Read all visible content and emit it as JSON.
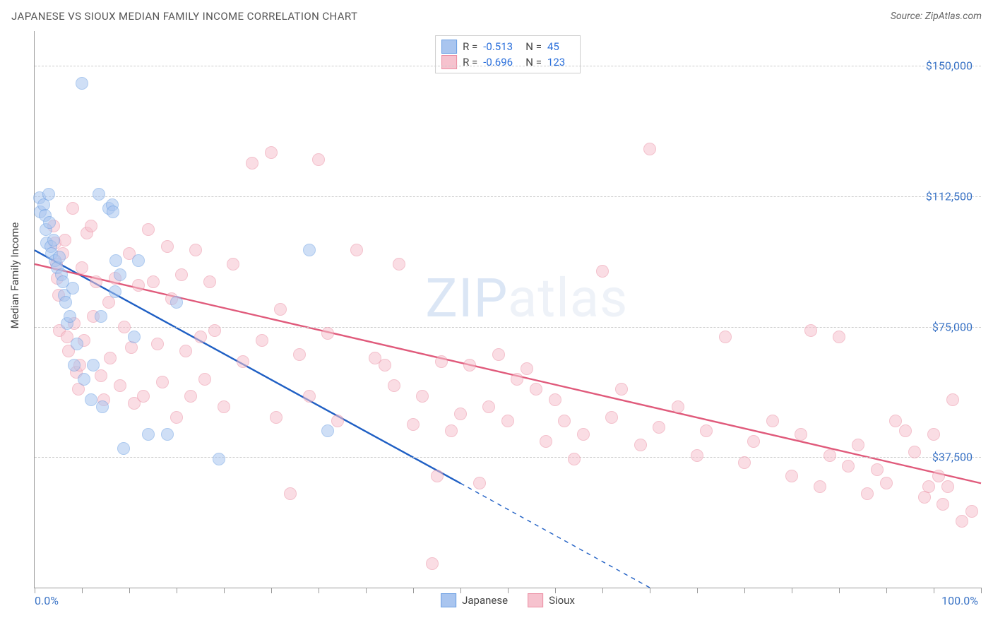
{
  "header": {
    "title": "JAPANESE VS SIOUX MEDIAN FAMILY INCOME CORRELATION CHART",
    "source_prefix": "Source: ",
    "source": "ZipAtlas.com"
  },
  "watermark": {
    "zip": "ZIP",
    "atlas": "atlas"
  },
  "chart": {
    "type": "scatter",
    "ylabel": "Median Family Income",
    "xlim": [
      0,
      100
    ],
    "ylim": [
      0,
      160000
    ],
    "xtick_label_left": "0.0%",
    "xtick_label_right": "100.0%",
    "xticks": [
      0,
      5,
      10,
      15,
      20,
      25,
      30,
      35,
      40,
      45,
      50,
      55,
      60,
      65,
      70,
      75,
      80,
      85,
      90,
      95,
      100
    ],
    "y_gridlines": [
      {
        "value": 37500,
        "label": "$37,500"
      },
      {
        "value": 75000,
        "label": "$75,000"
      },
      {
        "value": 112500,
        "label": "$112,500"
      },
      {
        "value": 150000,
        "label": "$150,000"
      }
    ],
    "background_color": "#ffffff",
    "grid_color": "#cccccc",
    "axis_color": "#999999",
    "tick_label_color": "#3b74c6",
    "point_radius": 8,
    "point_opacity": 0.55,
    "series": [
      {
        "name": "Japanese",
        "fill_color": "#a9c5ef",
        "stroke_color": "#6b9fe3",
        "trend_color": "#1f5fc4",
        "trend_width": 2.4,
        "R": "-0.513",
        "N": "45",
        "trend": {
          "x1": 0,
          "y1": 97000,
          "x2": 45,
          "y2": 30000,
          "extrap_x2": 65,
          "extrap_y2": 0
        },
        "points": [
          [
            0.5,
            112000
          ],
          [
            0.6,
            108000
          ],
          [
            1.0,
            110000
          ],
          [
            1.1,
            107000
          ],
          [
            1.2,
            103000
          ],
          [
            1.3,
            99000
          ],
          [
            1.5,
            113000
          ],
          [
            1.6,
            105000
          ],
          [
            1.7,
            98000
          ],
          [
            1.8,
            96000
          ],
          [
            2.0,
            100000
          ],
          [
            2.2,
            94000
          ],
          [
            2.4,
            92000
          ],
          [
            2.6,
            95000
          ],
          [
            2.8,
            90000
          ],
          [
            3.0,
            88000
          ],
          [
            3.1,
            84000
          ],
          [
            3.3,
            82000
          ],
          [
            3.4,
            76000
          ],
          [
            3.7,
            78000
          ],
          [
            4.0,
            86000
          ],
          [
            4.2,
            64000
          ],
          [
            4.5,
            70000
          ],
          [
            5.0,
            145000
          ],
          [
            5.2,
            60000
          ],
          [
            6.0,
            54000
          ],
          [
            6.2,
            64000
          ],
          [
            6.8,
            113000
          ],
          [
            7.0,
            78000
          ],
          [
            7.2,
            52000
          ],
          [
            7.8,
            109000
          ],
          [
            8.2,
            110000
          ],
          [
            8.3,
            108000
          ],
          [
            8.5,
            85000
          ],
          [
            8.6,
            94000
          ],
          [
            9.0,
            90000
          ],
          [
            9.4,
            40000
          ],
          [
            10.5,
            72000
          ],
          [
            11.0,
            94000
          ],
          [
            12.0,
            44000
          ],
          [
            14.0,
            44000
          ],
          [
            15.0,
            82000
          ],
          [
            19.5,
            37000
          ],
          [
            29.0,
            97000
          ],
          [
            31.0,
            45000
          ]
        ]
      },
      {
        "name": "Sioux",
        "fill_color": "#f6c2ce",
        "stroke_color": "#eb8fa4",
        "trend_color": "#e05a7b",
        "trend_width": 2.4,
        "R": "-0.696",
        "N": "123",
        "trend": {
          "x1": 0,
          "y1": 93000,
          "x2": 100,
          "y2": 30000,
          "extrap_x2": 100,
          "extrap_y2": 30000
        },
        "points": [
          [
            2.0,
            104000
          ],
          [
            2.2,
            99000
          ],
          [
            2.3,
            93000
          ],
          [
            2.4,
            89000
          ],
          [
            2.5,
            84000
          ],
          [
            2.6,
            74000
          ],
          [
            3.0,
            96000
          ],
          [
            3.2,
            100000
          ],
          [
            3.4,
            72000
          ],
          [
            3.6,
            68000
          ],
          [
            4.0,
            109000
          ],
          [
            4.2,
            76000
          ],
          [
            4.4,
            62000
          ],
          [
            4.6,
            57000
          ],
          [
            4.8,
            64000
          ],
          [
            5.0,
            92000
          ],
          [
            5.2,
            71000
          ],
          [
            5.5,
            102000
          ],
          [
            6.0,
            104000
          ],
          [
            6.2,
            78000
          ],
          [
            6.5,
            88000
          ],
          [
            7.0,
            61000
          ],
          [
            7.3,
            54000
          ],
          [
            7.8,
            82000
          ],
          [
            8.0,
            66000
          ],
          [
            8.5,
            89000
          ],
          [
            9.0,
            58000
          ],
          [
            9.5,
            75000
          ],
          [
            10.0,
            96000
          ],
          [
            10.2,
            69000
          ],
          [
            10.5,
            53000
          ],
          [
            11.0,
            87000
          ],
          [
            11.5,
            55000
          ],
          [
            12.0,
            103000
          ],
          [
            12.5,
            88000
          ],
          [
            13.0,
            70000
          ],
          [
            13.5,
            59000
          ],
          [
            14.0,
            98000
          ],
          [
            14.5,
            83000
          ],
          [
            15.0,
            49000
          ],
          [
            15.5,
            90000
          ],
          [
            16.0,
            68000
          ],
          [
            16.5,
            55000
          ],
          [
            17.0,
            97000
          ],
          [
            17.5,
            72000
          ],
          [
            18.0,
            60000
          ],
          [
            18.5,
            88000
          ],
          [
            19.0,
            74000
          ],
          [
            20.0,
            52000
          ],
          [
            21.0,
            93000
          ],
          [
            22.0,
            65000
          ],
          [
            23.0,
            122000
          ],
          [
            24.0,
            71000
          ],
          [
            25.0,
            125000
          ],
          [
            25.5,
            49000
          ],
          [
            26.0,
            80000
          ],
          [
            27.0,
            27000
          ],
          [
            28.0,
            67000
          ],
          [
            29.0,
            55000
          ],
          [
            30.0,
            123000
          ],
          [
            31.0,
            73000
          ],
          [
            32.0,
            48000
          ],
          [
            34.0,
            97000
          ],
          [
            36.0,
            66000
          ],
          [
            37.0,
            64000
          ],
          [
            38.0,
            58000
          ],
          [
            38.5,
            93000
          ],
          [
            40.0,
            47000
          ],
          [
            41.0,
            55000
          ],
          [
            42.0,
            7000
          ],
          [
            42.5,
            32000
          ],
          [
            43.0,
            65000
          ],
          [
            44.0,
            45000
          ],
          [
            45.0,
            50000
          ],
          [
            46.0,
            64000
          ],
          [
            47.0,
            30000
          ],
          [
            48.0,
            52000
          ],
          [
            49.0,
            67000
          ],
          [
            50.0,
            48000
          ],
          [
            51.0,
            60000
          ],
          [
            52.0,
            63000
          ],
          [
            53.0,
            57000
          ],
          [
            54.0,
            42000
          ],
          [
            55.0,
            54000
          ],
          [
            56.0,
            48000
          ],
          [
            57.0,
            37000
          ],
          [
            58.0,
            44000
          ],
          [
            60.0,
            91000
          ],
          [
            61.0,
            49000
          ],
          [
            62.0,
            57000
          ],
          [
            64.0,
            41000
          ],
          [
            65.0,
            126000
          ],
          [
            66.0,
            46000
          ],
          [
            68.0,
            52000
          ],
          [
            70.0,
            38000
          ],
          [
            71.0,
            45000
          ],
          [
            73.0,
            72000
          ],
          [
            75.0,
            36000
          ],
          [
            76.0,
            42000
          ],
          [
            78.0,
            48000
          ],
          [
            80.0,
            32000
          ],
          [
            81.0,
            44000
          ],
          [
            82.0,
            74000
          ],
          [
            83.0,
            29000
          ],
          [
            84.0,
            38000
          ],
          [
            85.0,
            72000
          ],
          [
            86.0,
            35000
          ],
          [
            87.0,
            41000
          ],
          [
            88.0,
            27000
          ],
          [
            89.0,
            34000
          ],
          [
            90.0,
            30000
          ],
          [
            91.0,
            48000
          ],
          [
            92.0,
            45000
          ],
          [
            93.0,
            39000
          ],
          [
            94.0,
            26000
          ],
          [
            94.5,
            29000
          ],
          [
            95.0,
            44000
          ],
          [
            95.5,
            32000
          ],
          [
            96.0,
            24000
          ],
          [
            96.5,
            29000
          ],
          [
            97.0,
            54000
          ],
          [
            98.0,
            19000
          ],
          [
            99.0,
            22000
          ]
        ]
      }
    ]
  }
}
